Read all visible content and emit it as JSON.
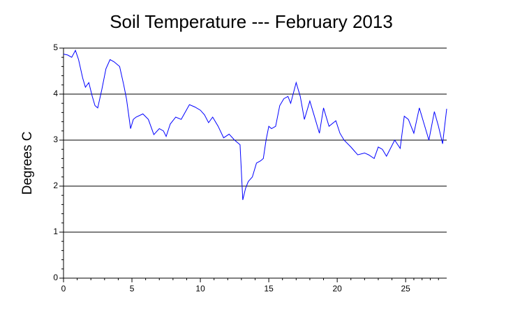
{
  "chart_data": {
    "type": "line",
    "title": "Soil Temperature --- February 2013",
    "y_label": "Degrees C",
    "x": [
      0,
      0.3,
      0.6,
      0.87,
      1.1,
      1.4,
      1.6,
      1.85,
      2.1,
      2.3,
      2.5,
      2.8,
      3.1,
      3.4,
      3.7,
      4.1,
      4.4,
      4.6,
      4.9,
      5.1,
      5.3,
      5.8,
      6.2,
      6.6,
      7.0,
      7.3,
      7.5,
      7.8,
      8.2,
      8.6,
      9.2,
      9.6,
      10.0,
      10.3,
      10.6,
      10.9,
      11.3,
      11.7,
      12.1,
      12.5,
      12.9,
      13.1,
      13.3,
      13.5,
      13.8,
      14.1,
      14.4,
      14.6,
      14.8,
      15.0,
      15.2,
      15.5,
      15.8,
      16.1,
      16.4,
      16.6,
      17.0,
      17.3,
      17.6,
      18.0,
      18.3,
      18.7,
      19.0,
      19.4,
      19.9,
      20.2,
      20.5,
      21.0,
      21.5,
      22.0,
      22.3,
      22.7,
      23.0,
      23.3,
      23.6,
      24.2,
      24.6,
      24.9,
      25.2,
      25.6,
      26.0,
      26.3,
      26.7,
      27.1,
      27.4,
      27.7,
      28.0
    ],
    "series": [
      {
        "name": "Soil Temperature",
        "color": "#0000ff",
        "values": [
          4.87,
          4.85,
          4.8,
          4.95,
          4.75,
          4.35,
          4.15,
          4.25,
          3.95,
          3.75,
          3.7,
          4.1,
          4.55,
          4.75,
          4.7,
          4.6,
          4.2,
          3.9,
          3.25,
          3.45,
          3.5,
          3.57,
          3.45,
          3.12,
          3.25,
          3.2,
          3.08,
          3.35,
          3.5,
          3.45,
          3.77,
          3.72,
          3.65,
          3.55,
          3.38,
          3.5,
          3.3,
          3.05,
          3.13,
          3.0,
          2.9,
          1.7,
          1.95,
          2.1,
          2.2,
          2.5,
          2.55,
          2.6,
          3.0,
          3.3,
          3.25,
          3.3,
          3.75,
          3.9,
          3.95,
          3.8,
          4.25,
          3.95,
          3.45,
          3.85,
          3.55,
          3.15,
          3.7,
          3.3,
          3.42,
          3.15,
          3.0,
          2.85,
          2.68,
          2.72,
          2.68,
          2.6,
          2.85,
          2.8,
          2.65,
          3.0,
          2.82,
          3.52,
          3.45,
          3.15,
          3.7,
          3.4,
          3.0,
          3.62,
          3.3,
          2.92,
          3.68
        ]
      }
    ],
    "xlim": [
      0,
      28
    ],
    "xticks": [
      0,
      5,
      10,
      15,
      20,
      25
    ],
    "ylim": [
      0,
      5
    ],
    "yticks": [
      0,
      1,
      2,
      3,
      4,
      5
    ],
    "grid": true
  }
}
